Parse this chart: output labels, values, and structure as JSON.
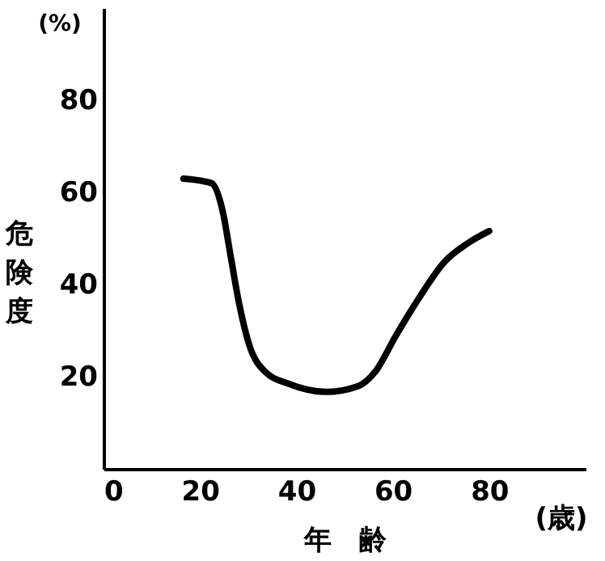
{
  "chart_data": {
    "type": "line",
    "xlabel": "年　齢",
    "ylabel": "危険度",
    "annotations": [
      "(%)",
      "(歳)"
    ],
    "series": [
      {
        "color": "#000000",
        "x": [
          16.6,
          22.4,
          24.7,
          26.4,
          28.1,
          30.2,
          33.6,
          38.3,
          46.1,
          52.9,
          56.3,
          60.7,
          65.4,
          70.8,
          75.6,
          80
        ],
        "values": [
          63,
          62,
          56,
          46,
          36,
          27,
          21,
          18.5,
          16.7,
          18,
          21,
          29,
          37,
          45,
          49,
          51.6
        ]
      }
    ],
    "xlim": [
      0,
      100
    ],
    "xticks": [
      0,
      20,
      40,
      60,
      80
    ],
    "ylim": [
      0,
      100
    ],
    "yticks": [
      20,
      40,
      60,
      80
    ],
    "grid": false,
    "marker": "none",
    "line_style": "solid"
  }
}
